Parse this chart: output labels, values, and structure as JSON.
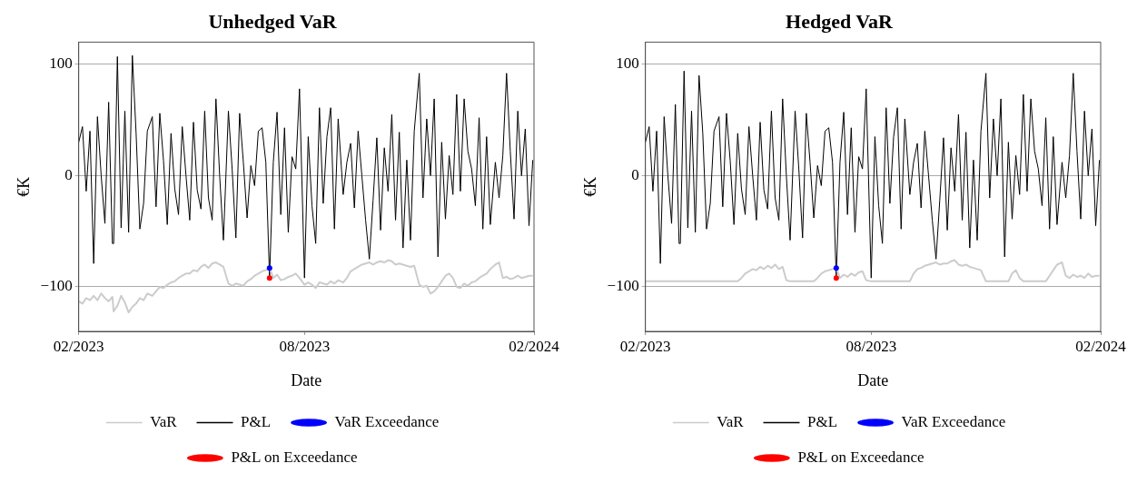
{
  "chart_data": [
    {
      "type": "line",
      "title": "Unhedged VaR",
      "xlabel": "Date",
      "ylabel": "€K",
      "xlim": [
        "2023-02-01",
        "2024-02-01"
      ],
      "xticks": [
        {
          "value": "2023-02-01",
          "label": "02/2023"
        },
        {
          "value": "2023-08-01",
          "label": "08/2023"
        },
        {
          "value": "2024-02-01",
          "label": "02/2024"
        }
      ],
      "ylim": [
        -140,
        120
      ],
      "yticks": [
        -100,
        0,
        100
      ],
      "grid": "y",
      "legend": "bottom",
      "marker": "none",
      "x": [
        "2023-02-01",
        "2023-02-04",
        "2023-02-07",
        "2023-02-10",
        "2023-02-13",
        "2023-02-16",
        "2023-02-19",
        "2023-02-22",
        "2023-02-25",
        "2023-02-28",
        "2023-03-01",
        "2023-03-04",
        "2023-03-07",
        "2023-03-10",
        "2023-03-13",
        "2023-03-16",
        "2023-03-19",
        "2023-03-22",
        "2023-03-25",
        "2023-03-28",
        "2023-04-01",
        "2023-04-04",
        "2023-04-07",
        "2023-04-10",
        "2023-04-13",
        "2023-04-16",
        "2023-04-19",
        "2023-04-22",
        "2023-04-25",
        "2023-04-28",
        "2023-05-01",
        "2023-05-04",
        "2023-05-07",
        "2023-05-10",
        "2023-05-13",
        "2023-05-16",
        "2023-05-19",
        "2023-05-22",
        "2023-05-25",
        "2023-05-28",
        "2023-06-01",
        "2023-06-04",
        "2023-06-07",
        "2023-06-10",
        "2023-06-13",
        "2023-06-16",
        "2023-06-19",
        "2023-06-22",
        "2023-06-25",
        "2023-06-28",
        "2023-07-01",
        "2023-07-04",
        "2023-07-07",
        "2023-07-10",
        "2023-07-13",
        "2023-07-16",
        "2023-07-19",
        "2023-07-22",
        "2023-07-25",
        "2023-07-28",
        "2023-08-01",
        "2023-08-04",
        "2023-08-07",
        "2023-08-10",
        "2023-08-13",
        "2023-08-16",
        "2023-08-19",
        "2023-08-22",
        "2023-08-25",
        "2023-08-28",
        "2023-09-01",
        "2023-09-04",
        "2023-09-07",
        "2023-09-10",
        "2023-09-13",
        "2023-09-16",
        "2023-09-19",
        "2023-09-22",
        "2023-09-25",
        "2023-09-28",
        "2023-10-01",
        "2023-10-04",
        "2023-10-07",
        "2023-10-10",
        "2023-10-13",
        "2023-10-16",
        "2023-10-19",
        "2023-10-22",
        "2023-10-25",
        "2023-10-28",
        "2023-11-01",
        "2023-11-04",
        "2023-11-07",
        "2023-11-10",
        "2023-11-13",
        "2023-11-16",
        "2023-11-19",
        "2023-11-22",
        "2023-11-25",
        "2023-11-28",
        "2023-12-01",
        "2023-12-04",
        "2023-12-07",
        "2023-12-10",
        "2023-12-13",
        "2023-12-16",
        "2023-12-19",
        "2023-12-22",
        "2023-12-25",
        "2023-12-28",
        "2024-01-01",
        "2024-01-04",
        "2024-01-07",
        "2024-01-10",
        "2024-01-13",
        "2024-01-16",
        "2024-01-19",
        "2024-01-22",
        "2024-01-25",
        "2024-01-28",
        "2024-01-31"
      ],
      "series": [
        {
          "name": "VaR",
          "color": "#cccccc",
          "values": [
            -113,
            -115,
            -110,
            -112,
            -108,
            -112,
            -106,
            -110,
            -113,
            -109,
            -122,
            -117,
            -108,
            -114,
            -123,
            -118,
            -115,
            -110,
            -112,
            -106,
            -108,
            -104,
            -100,
            -101,
            -98,
            -96,
            -95,
            -92,
            -90,
            -88,
            -88,
            -85,
            -86,
            -82,
            -80,
            -83,
            -79,
            -78,
            -80,
            -82,
            -97,
            -99,
            -97,
            -98,
            -99,
            -95,
            -93,
            -90,
            -88,
            -86,
            -85,
            -83,
            -92,
            -89,
            -94,
            -93,
            -91,
            -90,
            -88,
            -92,
            -98,
            -96,
            -98,
            -101,
            -96,
            -97,
            -98,
            -95,
            -97,
            -94,
            -96,
            -92,
            -86,
            -84,
            -82,
            -80,
            -79,
            -78,
            -80,
            -78,
            -77,
            -78,
            -76,
            -77,
            -80,
            -79,
            -80,
            -81,
            -82,
            -81,
            -98,
            -100,
            -99,
            -106,
            -104,
            -100,
            -95,
            -90,
            -88,
            -92,
            -100,
            -101,
            -97,
            -99,
            -96,
            -95,
            -92,
            -90,
            -88,
            -84,
            -80,
            -78,
            -92,
            -91,
            -93,
            -92,
            -90,
            -92,
            -91,
            -90,
            -90
          ]
        },
        {
          "name": "P&L",
          "color": "#000000",
          "values": [
            30,
            44,
            -14,
            40,
            -79,
            53,
            0,
            -43,
            66,
            -61,
            -61,
            107,
            -47,
            58,
            -51,
            108,
            38,
            -48,
            -25,
            40,
            53,
            -28,
            56,
            13,
            -44,
            38,
            -12,
            -35,
            44,
            0,
            -40,
            48,
            -13,
            -30,
            58,
            -20,
            -40,
            69,
            0,
            -58,
            58,
            6,
            -56,
            56,
            12,
            -38,
            9,
            -9,
            40,
            43,
            12,
            -92,
            12,
            57,
            -35,
            43,
            -51,
            17,
            6,
            78,
            -92,
            35,
            -27,
            -61,
            61,
            -25,
            35,
            61,
            -48,
            51,
            -17,
            12,
            29,
            -29,
            40,
            0,
            -40,
            -75,
            -22,
            34,
            -49,
            25,
            -14,
            55,
            -40,
            39,
            -65,
            14,
            -58,
            40,
            92,
            -20,
            51,
            0,
            69,
            -73,
            30,
            -39,
            18,
            -17,
            73,
            -14,
            69,
            22,
            6,
            -27,
            52,
            -48,
            35,
            -44,
            12,
            -20,
            18,
            92,
            22,
            -39,
            58,
            0,
            42,
            -45,
            14
          ]
        },
        {
          "name": "VaR Exceedance",
          "type": "scatter",
          "marker": "circle",
          "color": "#0000ff",
          "x": [
            "2023-07-04"
          ],
          "values": [
            -83
          ]
        },
        {
          "name": "P&L on Exceedance",
          "type": "scatter",
          "marker": "circle",
          "color": "#ff0000",
          "x": [
            "2023-07-04"
          ],
          "values": [
            -92
          ]
        }
      ]
    },
    {
      "type": "line",
      "title": "Hedged VaR",
      "xlabel": "Date",
      "ylabel": "€K",
      "xlim": [
        "2023-02-01",
        "2024-02-01"
      ],
      "xticks": [
        {
          "value": "2023-02-01",
          "label": "02/2023"
        },
        {
          "value": "2023-08-01",
          "label": "08/2023"
        },
        {
          "value": "2024-02-01",
          "label": "02/2024"
        }
      ],
      "ylim": [
        -140,
        120
      ],
      "yticks": [
        -100,
        0,
        100
      ],
      "grid": "y",
      "legend": "bottom",
      "marker": "none",
      "x": [
        "2023-02-01",
        "2023-02-04",
        "2023-02-07",
        "2023-02-10",
        "2023-02-13",
        "2023-02-16",
        "2023-02-19",
        "2023-02-22",
        "2023-02-25",
        "2023-02-28",
        "2023-03-01",
        "2023-03-04",
        "2023-03-07",
        "2023-03-10",
        "2023-03-13",
        "2023-03-16",
        "2023-03-19",
        "2023-03-22",
        "2023-03-25",
        "2023-03-28",
        "2023-04-01",
        "2023-04-04",
        "2023-04-07",
        "2023-04-10",
        "2023-04-13",
        "2023-04-16",
        "2023-04-19",
        "2023-04-22",
        "2023-04-25",
        "2023-04-28",
        "2023-05-01",
        "2023-05-04",
        "2023-05-07",
        "2023-05-10",
        "2023-05-13",
        "2023-05-16",
        "2023-05-19",
        "2023-05-22",
        "2023-05-25",
        "2023-05-28",
        "2023-06-01",
        "2023-06-04",
        "2023-06-07",
        "2023-06-10",
        "2023-06-13",
        "2023-06-16",
        "2023-06-19",
        "2023-06-22",
        "2023-06-25",
        "2023-06-28",
        "2023-07-01",
        "2023-07-04",
        "2023-07-07",
        "2023-07-10",
        "2023-07-13",
        "2023-07-16",
        "2023-07-19",
        "2023-07-22",
        "2023-07-25",
        "2023-07-28",
        "2023-08-01",
        "2023-08-04",
        "2023-08-07",
        "2023-08-10",
        "2023-08-13",
        "2023-08-16",
        "2023-08-19",
        "2023-08-22",
        "2023-08-25",
        "2023-08-28",
        "2023-09-01",
        "2023-09-04",
        "2023-09-07",
        "2023-09-10",
        "2023-09-13",
        "2023-09-16",
        "2023-09-19",
        "2023-09-22",
        "2023-09-25",
        "2023-09-28",
        "2023-10-01",
        "2023-10-04",
        "2023-10-07",
        "2023-10-10",
        "2023-10-13",
        "2023-10-16",
        "2023-10-19",
        "2023-10-22",
        "2023-10-25",
        "2023-10-28",
        "2023-11-01",
        "2023-11-04",
        "2023-11-07",
        "2023-11-10",
        "2023-11-13",
        "2023-11-16",
        "2023-11-19",
        "2023-11-22",
        "2023-11-25",
        "2023-11-28",
        "2023-12-01",
        "2023-12-04",
        "2023-12-07",
        "2023-12-10",
        "2023-12-13",
        "2023-12-16",
        "2023-12-19",
        "2023-12-22",
        "2023-12-25",
        "2023-12-28",
        "2024-01-01",
        "2024-01-04",
        "2024-01-07",
        "2024-01-10",
        "2024-01-13",
        "2024-01-16",
        "2024-01-19",
        "2024-01-22",
        "2024-01-25",
        "2024-01-28",
        "2024-01-31"
      ],
      "series": [
        {
          "name": "VaR",
          "color": "#cccccc",
          "values": [
            -95,
            -95,
            -95,
            -95,
            -95,
            -95,
            -95,
            -95,
            -95,
            -95,
            -95,
            -95,
            -95,
            -95,
            -95,
            -95,
            -95,
            -95,
            -95,
            -95,
            -95,
            -95,
            -95,
            -95,
            -95,
            -95,
            -92,
            -88,
            -86,
            -84,
            -85,
            -82,
            -84,
            -81,
            -83,
            -80,
            -84,
            -82,
            -94,
            -95,
            -95,
            -95,
            -95,
            -95,
            -95,
            -95,
            -92,
            -88,
            -86,
            -85,
            -84,
            -83,
            -92,
            -89,
            -91,
            -88,
            -90,
            -87,
            -86,
            -94,
            -95,
            -95,
            -95,
            -95,
            -95,
            -95,
            -95,
            -95,
            -95,
            -95,
            -95,
            -88,
            -84,
            -83,
            -81,
            -80,
            -79,
            -78,
            -80,
            -79,
            -79,
            -77,
            -76,
            -80,
            -81,
            -80,
            -82,
            -83,
            -84,
            -85,
            -95,
            -95,
            -95,
            -95,
            -95,
            -95,
            -95,
            -88,
            -85,
            -92,
            -95,
            -95,
            -95,
            -95,
            -95,
            -95,
            -95,
            -90,
            -85,
            -80,
            -78,
            -90,
            -92,
            -89,
            -91,
            -90,
            -92,
            -88,
            -91,
            -90,
            -90
          ]
        },
        {
          "name": "P&L",
          "color": "#000000",
          "values": [
            30,
            44,
            -14,
            40,
            -79,
            53,
            0,
            -43,
            64,
            -61,
            -61,
            94,
            -47,
            58,
            -51,
            90,
            38,
            -48,
            -25,
            40,
            53,
            -28,
            56,
            13,
            -44,
            38,
            -12,
            -35,
            44,
            0,
            -40,
            48,
            -13,
            -30,
            58,
            -20,
            -40,
            69,
            0,
            -58,
            58,
            6,
            -56,
            56,
            12,
            -38,
            9,
            -9,
            40,
            43,
            12,
            -92,
            12,
            57,
            -35,
            43,
            -51,
            17,
            6,
            78,
            -92,
            35,
            -27,
            -61,
            61,
            -25,
            35,
            61,
            -48,
            51,
            -17,
            12,
            29,
            -29,
            40,
            0,
            -40,
            -75,
            -22,
            34,
            -49,
            25,
            -14,
            55,
            -40,
            39,
            -65,
            14,
            -58,
            40,
            92,
            -20,
            51,
            0,
            69,
            -73,
            30,
            -39,
            18,
            -17,
            73,
            -14,
            69,
            22,
            6,
            -27,
            52,
            -48,
            35,
            -44,
            12,
            -20,
            18,
            92,
            22,
            -39,
            58,
            0,
            42,
            -45,
            14
          ]
        },
        {
          "name": "VaR Exceedance",
          "type": "scatter",
          "marker": "circle",
          "color": "#0000ff",
          "x": [
            "2023-07-04"
          ],
          "values": [
            -83
          ]
        },
        {
          "name": "P&L on Exceedance",
          "type": "scatter",
          "marker": "circle",
          "color": "#ff0000",
          "x": [
            "2023-07-04"
          ],
          "values": [
            -92
          ]
        }
      ]
    }
  ]
}
